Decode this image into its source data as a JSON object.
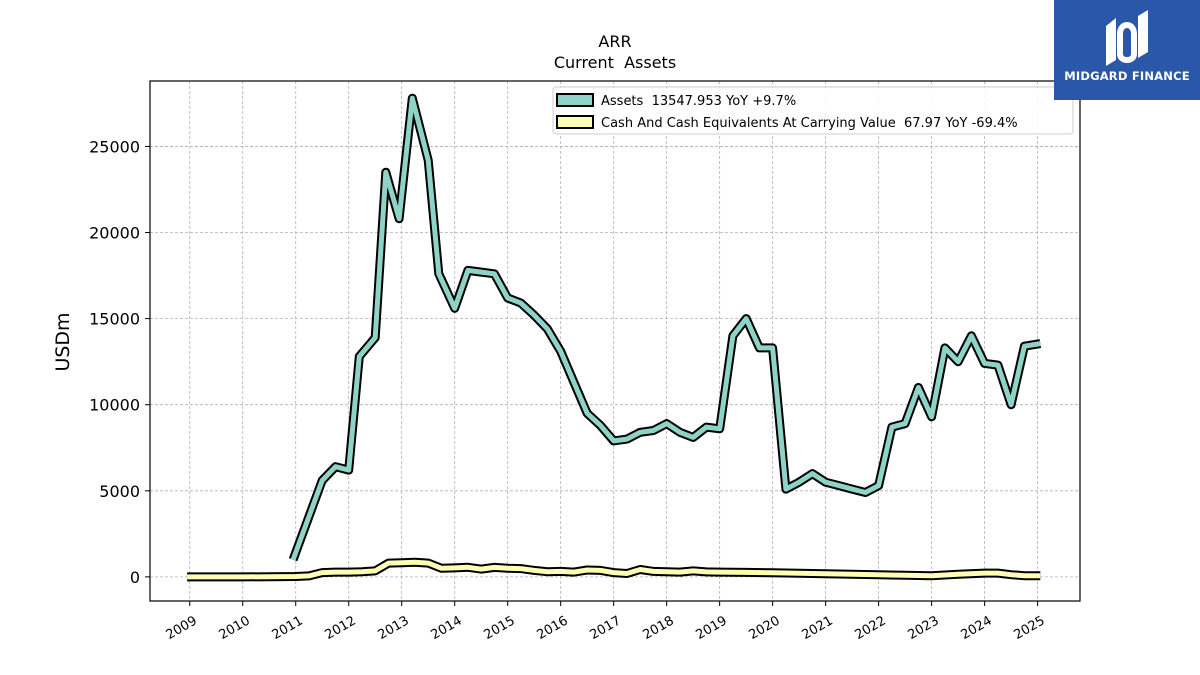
{
  "chart_data": {
    "type": "line",
    "title": "ARR",
    "subtitle": "Current  Assets",
    "ylabel": "USDm",
    "xlabel": "",
    "ylim": [
      -1400,
      28800
    ],
    "xlim": [
      2008.25,
      2025.8
    ],
    "yticks": [
      0,
      5000,
      10000,
      15000,
      20000,
      25000
    ],
    "xticks": [
      2009,
      2010,
      2011,
      2012,
      2013,
      2014,
      2015,
      2016,
      2017,
      2018,
      2019,
      2020,
      2021,
      2022,
      2023,
      2024,
      2025
    ],
    "grid": true,
    "legend_position": "top-right",
    "series": [
      {
        "name": "Assets  13547.953 YoY +9.7%",
        "color": "#8dd3c7",
        "points": [
          [
            2010.95,
            1000
          ],
          [
            2011.5,
            5600
          ],
          [
            2011.75,
            6400
          ],
          [
            2012.0,
            6200
          ],
          [
            2012.2,
            12800
          ],
          [
            2012.5,
            13900
          ],
          [
            2012.7,
            23500
          ],
          [
            2012.95,
            20800
          ],
          [
            2013.2,
            27800
          ],
          [
            2013.5,
            24200
          ],
          [
            2013.7,
            17600
          ],
          [
            2014.0,
            15600
          ],
          [
            2014.25,
            17800
          ],
          [
            2014.5,
            17700
          ],
          [
            2014.75,
            17600
          ],
          [
            2015.0,
            16200
          ],
          [
            2015.25,
            15900
          ],
          [
            2015.5,
            15200
          ],
          [
            2015.75,
            14400
          ],
          [
            2016.0,
            13100
          ],
          [
            2016.25,
            11300
          ],
          [
            2016.5,
            9500
          ],
          [
            2016.75,
            8800
          ],
          [
            2017.0,
            7900
          ],
          [
            2017.25,
            8000
          ],
          [
            2017.5,
            8400
          ],
          [
            2017.75,
            8500
          ],
          [
            2018.0,
            8900
          ],
          [
            2018.25,
            8400
          ],
          [
            2018.5,
            8100
          ],
          [
            2018.75,
            8700
          ],
          [
            2019.0,
            8600
          ],
          [
            2019.25,
            14000
          ],
          [
            2019.5,
            15000
          ],
          [
            2019.75,
            13300
          ],
          [
            2020.0,
            13300
          ],
          [
            2020.25,
            5100
          ],
          [
            2020.5,
            5500
          ],
          [
            2020.75,
            6000
          ],
          [
            2021.0,
            5500
          ],
          [
            2021.25,
            5300
          ],
          [
            2021.5,
            5100
          ],
          [
            2021.75,
            4900
          ],
          [
            2022.0,
            5300
          ],
          [
            2022.25,
            8700
          ],
          [
            2022.5,
            8900
          ],
          [
            2022.75,
            11000
          ],
          [
            2023.0,
            9300
          ],
          [
            2023.25,
            13300
          ],
          [
            2023.5,
            12500
          ],
          [
            2023.75,
            14000
          ],
          [
            2024.0,
            12400
          ],
          [
            2024.25,
            12300
          ],
          [
            2024.5,
            10000
          ],
          [
            2024.75,
            13400
          ],
          [
            2025.05,
            13550
          ]
        ]
      },
      {
        "name": "Cash And Cash Equivalents At Carrying Value  67.97 YoY -69.4%",
        "color": "#ffffb3",
        "points": [
          [
            2008.95,
            0
          ],
          [
            2009.5,
            0
          ],
          [
            2010.0,
            0
          ],
          [
            2010.5,
            10
          ],
          [
            2011.0,
            20
          ],
          [
            2011.25,
            60
          ],
          [
            2011.5,
            250
          ],
          [
            2011.75,
            280
          ],
          [
            2012.0,
            280
          ],
          [
            2012.25,
            300
          ],
          [
            2012.5,
            350
          ],
          [
            2012.75,
            800
          ],
          [
            2013.0,
            820
          ],
          [
            2013.25,
            850
          ],
          [
            2013.5,
            800
          ],
          [
            2013.75,
            500
          ],
          [
            2014.0,
            520
          ],
          [
            2014.25,
            560
          ],
          [
            2014.5,
            450
          ],
          [
            2014.75,
            550
          ],
          [
            2015.0,
            500
          ],
          [
            2015.25,
            480
          ],
          [
            2015.5,
            380
          ],
          [
            2015.75,
            300
          ],
          [
            2016.0,
            320
          ],
          [
            2016.25,
            280
          ],
          [
            2016.5,
            400
          ],
          [
            2016.75,
            380
          ],
          [
            2017.0,
            250
          ],
          [
            2017.25,
            200
          ],
          [
            2017.5,
            430
          ],
          [
            2017.75,
            320
          ],
          [
            2018.0,
            300
          ],
          [
            2018.25,
            280
          ],
          [
            2018.5,
            350
          ],
          [
            2018.75,
            290
          ],
          [
            2019.0,
            280
          ],
          [
            2019.5,
            260
          ],
          [
            2020.0,
            240
          ],
          [
            2020.5,
            210
          ],
          [
            2021.0,
            180
          ],
          [
            2021.5,
            150
          ],
          [
            2022.0,
            120
          ],
          [
            2022.5,
            90
          ],
          [
            2023.0,
            70
          ],
          [
            2023.5,
            150
          ],
          [
            2024.0,
            220
          ],
          [
            2024.25,
            220
          ],
          [
            2024.5,
            130
          ],
          [
            2024.75,
            70
          ],
          [
            2025.05,
            68
          ]
        ]
      }
    ]
  },
  "logo": {
    "text": "MIDGARD FINANCE",
    "background": "#2a57a8",
    "icon": "midgard-logo-icon"
  }
}
